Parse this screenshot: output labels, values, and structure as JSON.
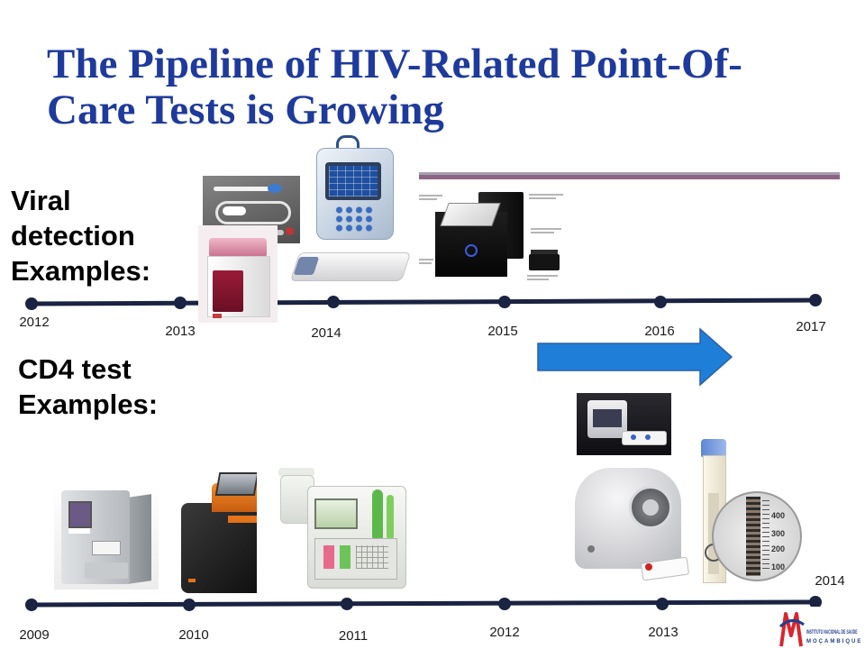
{
  "slide": {
    "title": {
      "line1": "The Pipeline of HIV-Related Point-Of-",
      "line2": "Care Tests is Growing"
    },
    "viral_section": {
      "label_lines": [
        "Viral",
        "detection",
        "Examples:"
      ]
    },
    "cd4_section": {
      "label_lines": [
        "CD4 test",
        "Examples:"
      ]
    }
  },
  "timelines": {
    "viral": {
      "years": [
        "2012",
        "2013",
        "2014",
        "2015",
        "2016",
        "2017"
      ]
    },
    "cd4": {
      "years": [
        "2009",
        "2010",
        "2011",
        "2012",
        "2013",
        "2014"
      ]
    }
  },
  "zoom_scale": {
    "ticks": [
      "400",
      "300",
      "200",
      "100"
    ]
  },
  "logo": {
    "line1": "INSTITUTO NACIONAL DE SAÚDE",
    "line2": "MOÇAMBIQUE"
  },
  "colors": {
    "title": "#1e3a9c",
    "timeline": "#1b2342",
    "arrow": "#1f7fd8",
    "arrow_edge": "#2a5ea8",
    "divider": "#8e6486",
    "divider_shade": "#a3a1ad",
    "logo_red": "#d8262f",
    "logo_blue": "#1f3f8f"
  }
}
